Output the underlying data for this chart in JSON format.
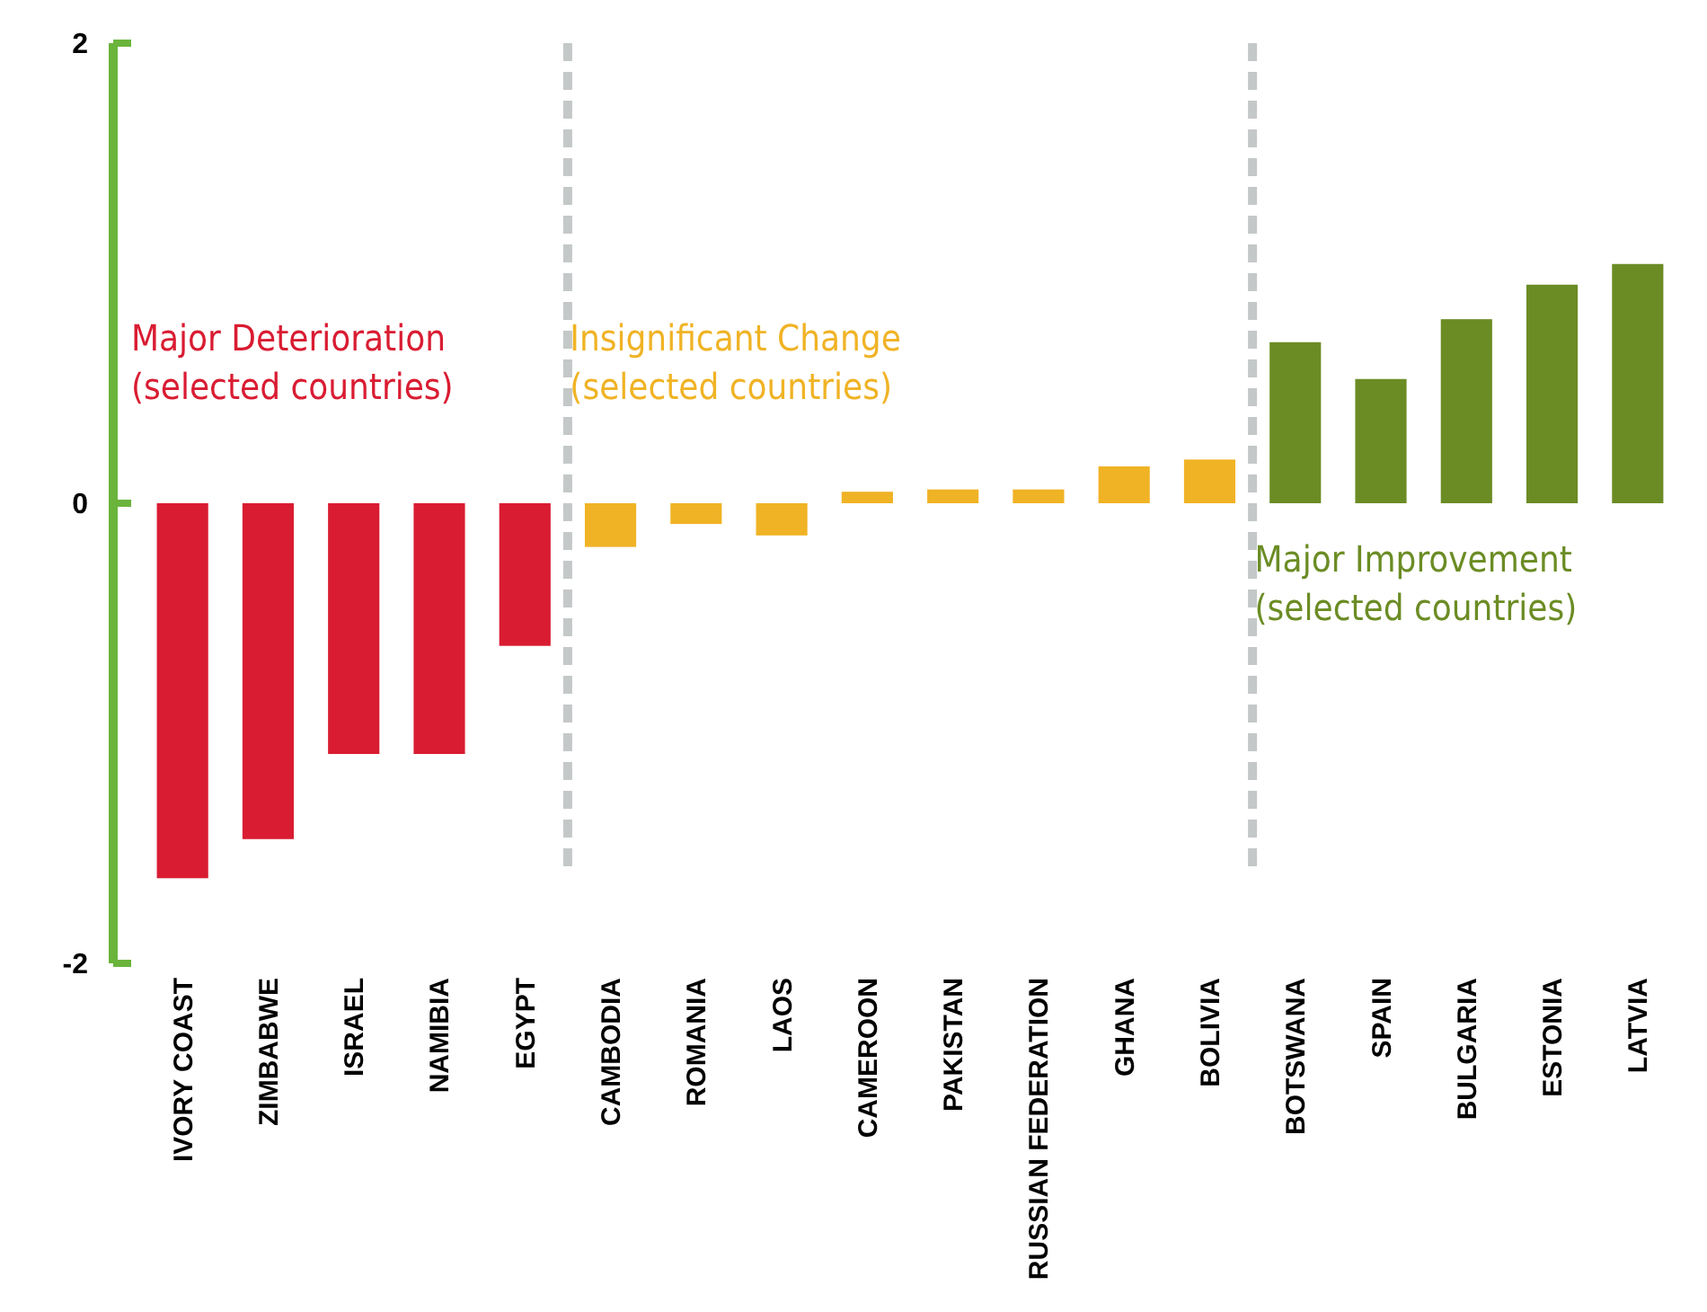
{
  "chart_data": {
    "type": "bar",
    "categories": [
      "IVORY COAST",
      "ZIMBABWE",
      "ISRAEL",
      "NAMIBIA",
      "EGYPT",
      "CAMBODIA",
      "ROMANIA",
      "LAOS",
      "CAMEROON",
      "PAKISTAN",
      "RUSSIAN FEDERATION",
      "GHANA",
      "BOLIVIA",
      "BOTSWANA",
      "SPAIN",
      "BULGARIA",
      "ESTONIA",
      "LATVIA"
    ],
    "series": [
      {
        "name": "Major Deterioration\n(selected countries)",
        "color": "#d91c32",
        "values": [
          -1.63,
          -1.46,
          -1.09,
          -1.09,
          -0.62,
          null,
          null,
          null,
          null,
          null,
          null,
          null,
          null,
          null,
          null,
          null,
          null,
          null
        ]
      },
      {
        "name": "Insignificant Change\n(selected countries)",
        "color": "#f0b325",
        "values": [
          null,
          null,
          null,
          null,
          null,
          -0.19,
          -0.09,
          -0.14,
          0.05,
          0.06,
          0.06,
          0.16,
          0.19,
          null,
          null,
          null,
          null,
          null
        ]
      },
      {
        "name": "Major Improvement\n(selected countries)",
        "color": "#6b8c24",
        "values": [
          null,
          null,
          null,
          null,
          null,
          null,
          null,
          null,
          null,
          null,
          null,
          null,
          null,
          0.7,
          0.54,
          0.8,
          0.95,
          1.04
        ]
      }
    ],
    "ylim": [
      -2,
      2
    ],
    "yticks": [
      -2,
      0,
      2
    ],
    "legend": false
  }
}
